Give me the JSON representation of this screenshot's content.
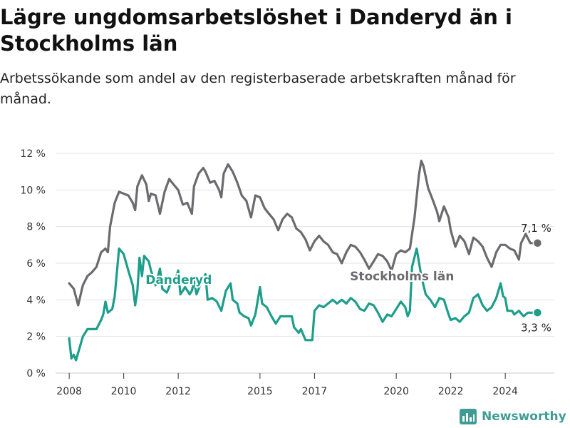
{
  "header": {
    "title": "Lägre ungdomsarbetslöshet i Danderyd än i Stockholms län",
    "subtitle": "Arbetssökande som andel av den registerbaserade arbetskraften månad för månad."
  },
  "brand": {
    "name": "Newsworthy",
    "icon": "newsworthy-logo-icon",
    "color": "#3e9c94"
  },
  "chart_data": {
    "type": "line",
    "title": "Lägre ungdomsarbetslöshet i Danderyd än i Stockholms län",
    "subtitle": "Arbetssökande som andel av den registerbaserade arbetskraften månad för månad.",
    "xlabel": "",
    "ylabel": "",
    "xlim": [
      2007.5,
      2025.8
    ],
    "ylim": [
      0,
      12
    ],
    "grid": true,
    "yticks": [
      0,
      2,
      4,
      6,
      8,
      10,
      12
    ],
    "ytick_labels": [
      "0 %",
      "2 %",
      "4 %",
      "6 %",
      "8 %",
      "10 %",
      "12 %"
    ],
    "xticks": [
      2008,
      2010,
      2012,
      2015,
      2017,
      2020,
      2022,
      2024
    ],
    "xtick_labels": [
      "2008",
      "2010",
      "2012",
      "2015",
      "2017",
      "2020",
      "2022",
      "2024"
    ],
    "series": [
      {
        "name": "Stockholms län",
        "color": "#6b6b6f",
        "end_label": "7,1 %",
        "points": [
          [
            2008.0,
            4.9
          ],
          [
            2008.17,
            4.6
          ],
          [
            2008.33,
            3.7
          ],
          [
            2008.5,
            4.8
          ],
          [
            2008.67,
            5.3
          ],
          [
            2008.83,
            5.5
          ],
          [
            2009.0,
            5.8
          ],
          [
            2009.17,
            6.6
          ],
          [
            2009.33,
            6.8
          ],
          [
            2009.42,
            6.6
          ],
          [
            2009.5,
            8.0
          ],
          [
            2009.67,
            9.3
          ],
          [
            2009.83,
            9.9
          ],
          [
            2010.0,
            9.8
          ],
          [
            2010.17,
            9.7
          ],
          [
            2010.33,
            9.3
          ],
          [
            2010.42,
            8.9
          ],
          [
            2010.5,
            10.2
          ],
          [
            2010.67,
            10.8
          ],
          [
            2010.83,
            10.3
          ],
          [
            2010.92,
            9.4
          ],
          [
            2011.0,
            9.8
          ],
          [
            2011.17,
            9.7
          ],
          [
            2011.33,
            8.7
          ],
          [
            2011.5,
            9.9
          ],
          [
            2011.67,
            10.6
          ],
          [
            2011.83,
            10.3
          ],
          [
            2012.0,
            10.0
          ],
          [
            2012.17,
            9.2
          ],
          [
            2012.33,
            9.3
          ],
          [
            2012.5,
            8.7
          ],
          [
            2012.58,
            10.2
          ],
          [
            2012.75,
            10.9
          ],
          [
            2012.92,
            11.2
          ],
          [
            2013.0,
            11.0
          ],
          [
            2013.17,
            10.4
          ],
          [
            2013.33,
            10.5
          ],
          [
            2013.5,
            10.0
          ],
          [
            2013.58,
            9.6
          ],
          [
            2013.67,
            10.9
          ],
          [
            2013.83,
            11.4
          ],
          [
            2014.0,
            11.0
          ],
          [
            2014.17,
            10.4
          ],
          [
            2014.33,
            9.7
          ],
          [
            2014.5,
            9.4
          ],
          [
            2014.67,
            8.5
          ],
          [
            2014.83,
            9.7
          ],
          [
            2015.0,
            9.6
          ],
          [
            2015.17,
            9.0
          ],
          [
            2015.33,
            8.7
          ],
          [
            2015.5,
            8.4
          ],
          [
            2015.67,
            7.8
          ],
          [
            2015.83,
            8.4
          ],
          [
            2016.0,
            8.7
          ],
          [
            2016.17,
            8.5
          ],
          [
            2016.33,
            7.9
          ],
          [
            2016.5,
            7.7
          ],
          [
            2016.67,
            7.3
          ],
          [
            2016.83,
            6.7
          ],
          [
            2017.0,
            7.2
          ],
          [
            2017.17,
            7.5
          ],
          [
            2017.33,
            7.2
          ],
          [
            2017.5,
            7.0
          ],
          [
            2017.67,
            6.6
          ],
          [
            2017.83,
            6.5
          ],
          [
            2018.0,
            6.0
          ],
          [
            2018.17,
            6.6
          ],
          [
            2018.33,
            7.0
          ],
          [
            2018.5,
            6.9
          ],
          [
            2018.67,
            6.6
          ],
          [
            2018.83,
            6.2
          ],
          [
            2019.0,
            5.7
          ],
          [
            2019.17,
            6.1
          ],
          [
            2019.33,
            6.5
          ],
          [
            2019.5,
            6.4
          ],
          [
            2019.67,
            6.1
          ],
          [
            2019.83,
            5.6
          ],
          [
            2020.0,
            6.5
          ],
          [
            2020.17,
            6.7
          ],
          [
            2020.33,
            6.6
          ],
          [
            2020.5,
            6.8
          ],
          [
            2020.67,
            8.5
          ],
          [
            2020.83,
            10.8
          ],
          [
            2020.92,
            11.6
          ],
          [
            2021.0,
            11.3
          ],
          [
            2021.17,
            10.1
          ],
          [
            2021.33,
            9.5
          ],
          [
            2021.5,
            8.8
          ],
          [
            2021.58,
            8.3
          ],
          [
            2021.75,
            9.1
          ],
          [
            2021.92,
            8.5
          ],
          [
            2022.0,
            7.8
          ],
          [
            2022.17,
            6.9
          ],
          [
            2022.33,
            7.5
          ],
          [
            2022.5,
            7.2
          ],
          [
            2022.67,
            6.5
          ],
          [
            2022.83,
            7.4
          ],
          [
            2023.0,
            7.2
          ],
          [
            2023.17,
            6.9
          ],
          [
            2023.33,
            6.3
          ],
          [
            2023.5,
            5.8
          ],
          [
            2023.67,
            6.6
          ],
          [
            2023.83,
            7.0
          ],
          [
            2024.0,
            7.0
          ],
          [
            2024.17,
            6.8
          ],
          [
            2024.33,
            6.7
          ],
          [
            2024.5,
            6.2
          ],
          [
            2024.58,
            7.1
          ],
          [
            2024.75,
            7.6
          ],
          [
            2024.92,
            7.1
          ],
          [
            2025.0,
            7.1
          ]
        ]
      },
      {
        "name": "Danderyd",
        "color": "#1d9e8b",
        "end_label": "3,3 %",
        "points": [
          [
            2008.0,
            1.9
          ],
          [
            2008.08,
            0.8
          ],
          [
            2008.17,
            1.0
          ],
          [
            2008.25,
            0.7
          ],
          [
            2008.5,
            2.0
          ],
          [
            2008.67,
            2.4
          ],
          [
            2008.83,
            2.4
          ],
          [
            2009.0,
            2.4
          ],
          [
            2009.17,
            2.9
          ],
          [
            2009.25,
            3.2
          ],
          [
            2009.33,
            3.9
          ],
          [
            2009.42,
            3.3
          ],
          [
            2009.58,
            3.5
          ],
          [
            2009.67,
            4.2
          ],
          [
            2009.83,
            6.8
          ],
          [
            2010.0,
            6.5
          ],
          [
            2010.17,
            5.6
          ],
          [
            2010.33,
            4.8
          ],
          [
            2010.42,
            3.7
          ],
          [
            2010.5,
            4.5
          ],
          [
            2010.58,
            6.3
          ],
          [
            2010.67,
            5.3
          ],
          [
            2010.75,
            6.4
          ],
          [
            2010.92,
            6.1
          ],
          [
            2011.0,
            5.6
          ],
          [
            2011.17,
            4.8
          ],
          [
            2011.33,
            5.7
          ],
          [
            2011.42,
            4.6
          ],
          [
            2011.58,
            4.4
          ],
          [
            2011.75,
            5.0
          ],
          [
            2011.92,
            5.2
          ],
          [
            2012.0,
            5.6
          ],
          [
            2012.08,
            4.3
          ],
          [
            2012.17,
            4.5
          ],
          [
            2012.25,
            4.7
          ],
          [
            2012.42,
            4.3
          ],
          [
            2012.5,
            4.5
          ],
          [
            2012.58,
            5.0
          ],
          [
            2012.67,
            4.3
          ],
          [
            2012.83,
            4.9
          ],
          [
            2013.0,
            5.4
          ],
          [
            2013.08,
            4.0
          ],
          [
            2013.25,
            4.1
          ],
          [
            2013.42,
            3.9
          ],
          [
            2013.58,
            3.4
          ],
          [
            2013.75,
            4.5
          ],
          [
            2013.92,
            4.9
          ],
          [
            2014.0,
            4.0
          ],
          [
            2014.17,
            3.8
          ],
          [
            2014.25,
            3.3
          ],
          [
            2014.42,
            3.1
          ],
          [
            2014.58,
            3.0
          ],
          [
            2014.67,
            2.6
          ],
          [
            2014.83,
            3.2
          ],
          [
            2015.0,
            4.7
          ],
          [
            2015.08,
            3.8
          ],
          [
            2015.25,
            3.6
          ],
          [
            2015.42,
            3.1
          ],
          [
            2015.58,
            2.7
          ],
          [
            2015.75,
            3.1
          ],
          [
            2015.92,
            3.1
          ],
          [
            2016.0,
            3.1
          ],
          [
            2016.17,
            3.1
          ],
          [
            2016.25,
            2.5
          ],
          [
            2016.42,
            2.2
          ],
          [
            2016.5,
            2.4
          ],
          [
            2016.67,
            1.8
          ],
          [
            2016.83,
            1.8
          ],
          [
            2016.92,
            1.8
          ],
          [
            2017.0,
            3.4
          ],
          [
            2017.17,
            3.7
          ],
          [
            2017.33,
            3.6
          ],
          [
            2017.5,
            3.8
          ],
          [
            2017.67,
            4.0
          ],
          [
            2017.83,
            3.8
          ],
          [
            2018.0,
            4.0
          ],
          [
            2018.17,
            3.8
          ],
          [
            2018.33,
            4.1
          ],
          [
            2018.5,
            3.9
          ],
          [
            2018.67,
            3.5
          ],
          [
            2018.83,
            3.4
          ],
          [
            2019.0,
            3.8
          ],
          [
            2019.17,
            3.7
          ],
          [
            2019.33,
            3.3
          ],
          [
            2019.5,
            2.8
          ],
          [
            2019.67,
            3.2
          ],
          [
            2019.83,
            3.1
          ],
          [
            2020.0,
            3.5
          ],
          [
            2020.17,
            3.9
          ],
          [
            2020.33,
            3.6
          ],
          [
            2020.42,
            3.1
          ],
          [
            2020.5,
            3.4
          ],
          [
            2020.58,
            5.8
          ],
          [
            2020.75,
            6.8
          ],
          [
            2020.92,
            5.3
          ],
          [
            2021.08,
            4.3
          ],
          [
            2021.25,
            4.0
          ],
          [
            2021.42,
            3.6
          ],
          [
            2021.58,
            4.1
          ],
          [
            2021.75,
            4.0
          ],
          [
            2021.92,
            3.2
          ],
          [
            2022.0,
            2.9
          ],
          [
            2022.17,
            3.0
          ],
          [
            2022.33,
            2.8
          ],
          [
            2022.5,
            3.1
          ],
          [
            2022.67,
            3.3
          ],
          [
            2022.83,
            4.1
          ],
          [
            2023.0,
            4.3
          ],
          [
            2023.17,
            3.7
          ],
          [
            2023.33,
            3.4
          ],
          [
            2023.5,
            3.6
          ],
          [
            2023.67,
            4.1
          ],
          [
            2023.83,
            4.9
          ],
          [
            2023.92,
            4.2
          ],
          [
            2024.0,
            4.1
          ],
          [
            2024.08,
            3.4
          ],
          [
            2024.25,
            3.4
          ],
          [
            2024.33,
            3.2
          ],
          [
            2024.5,
            3.4
          ],
          [
            2024.67,
            3.1
          ],
          [
            2024.83,
            3.3
          ],
          [
            2025.0,
            3.3
          ]
        ]
      }
    ],
    "annotations": [
      {
        "text": "Danderyd",
        "series": "Danderyd",
        "x": 2010.8,
        "y": 5.1
      },
      {
        "text": "Stockholms län",
        "series": "Stockholms län",
        "x": 2018.3,
        "y": 5.3
      }
    ]
  }
}
